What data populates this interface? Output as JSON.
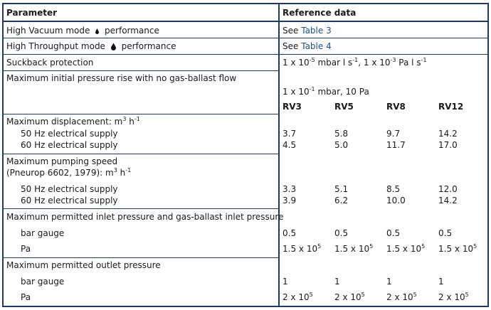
{
  "header": {
    "parameter": "Parameter",
    "reference": "Reference data"
  },
  "rows": {
    "hv_a": "High Vacuum mode",
    "hv_b": "performance",
    "hv_ref_pre": "See",
    "hv_ref_link": "Table 3",
    "ht_a": "High Throughput mode",
    "ht_b": "performance",
    "ht_ref_pre": "See",
    "ht_ref_link": "Table 4",
    "suckback": "Suckback protection",
    "suck_1a": "1 x 10",
    "suck_1sup": "-5",
    "suck_1b": " mbar l s",
    "suck_1sup2": "-1",
    "suck_2a": ", 1 x 10",
    "suck_2sup": "-3",
    "suck_2b": " Pa l s",
    "suck_2sup2": "-1",
    "pressure_rise": "Maximum initial pressure rise with no gas-ballast flow",
    "pr_a": "1 x 10",
    "pr_sup": "-1",
    "pr_b": " mbar, 10 Pa",
    "displacement_a": "Maximum displacement: m",
    "displacement_sup": "3",
    "displacement_b": " h",
    "displacement_sup2": "-1",
    "hz50": "50 Hz electrical supply",
    "hz60": "60 Hz electrical supply",
    "speed_1": "Maximum pumping speed",
    "speed_2a": "(Pneurop 6602, 1979): m",
    "speed_2sup": "3",
    "speed_2b": " h",
    "speed_2sup2": "-1",
    "inlet": "Maximum permitted inlet pressure and gas-ballast inlet pressure",
    "bar_gauge": "bar gauge",
    "pa": "Pa",
    "outlet": "Maximum permitted outlet pressure"
  },
  "models": [
    "RV3",
    "RV5",
    "RV8",
    "RV12"
  ],
  "disp50": [
    "3.7",
    "5.8",
    "9.7",
    "14.2"
  ],
  "disp60": [
    "4.5",
    "5.0",
    "11.7",
    "17.0"
  ],
  "speed50": [
    "3.3",
    "5.1",
    "8.5",
    "12.0"
  ],
  "speed60": [
    "3.9",
    "6.2",
    "10.0",
    "14.2"
  ],
  "inlet_bar": [
    "0.5",
    "0.5",
    "0.5",
    "0.5"
  ],
  "inlet_pa_base": "1.5 x 10",
  "inlet_pa_sup": "5",
  "outlet_bar": [
    "1",
    "1",
    "1",
    "1"
  ],
  "outlet_pa_base": "2 x 10",
  "outlet_pa_sup": "5",
  "colors": {
    "border": "#1f3864",
    "link": "#1f4e8c"
  },
  "icons": [
    "small-droplet-icon",
    "large-droplet-icon"
  ]
}
